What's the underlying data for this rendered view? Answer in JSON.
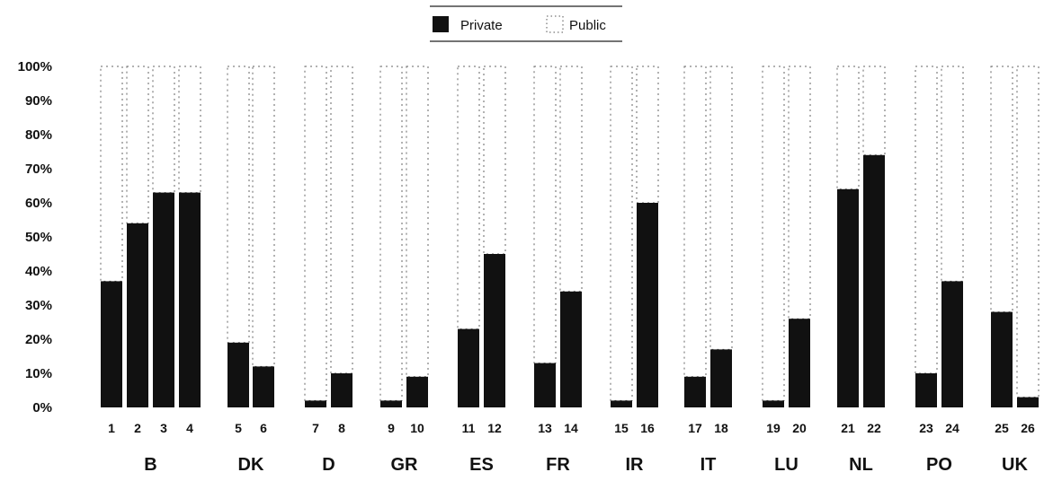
{
  "chart_data": {
    "type": "bar",
    "stacked": true,
    "percent_stacked": true,
    "title": "",
    "xlabel": "",
    "ylabel": "",
    "ylim": [
      0,
      100
    ],
    "y_ticks": [
      "0%",
      "10%",
      "20%",
      "30%",
      "40%",
      "50%",
      "60%",
      "70%",
      "80%",
      "90%",
      "100%"
    ],
    "grid": false,
    "legend_position": "top-center",
    "categories": [
      "1",
      "2",
      "3",
      "4",
      "5",
      "6",
      "7",
      "8",
      "9",
      "10",
      "11",
      "12",
      "13",
      "14",
      "15",
      "16",
      "17",
      "18",
      "19",
      "20",
      "21",
      "22",
      "23",
      "24",
      "25",
      "26"
    ],
    "groups": [
      {
        "label": "B",
        "bars": [
          "1",
          "2",
          "3",
          "4"
        ]
      },
      {
        "label": "DK",
        "bars": [
          "5",
          "6"
        ]
      },
      {
        "label": "D",
        "bars": [
          "7",
          "8"
        ]
      },
      {
        "label": "GR",
        "bars": [
          "9",
          "10"
        ]
      },
      {
        "label": "ES",
        "bars": [
          "11",
          "12"
        ]
      },
      {
        "label": "FR",
        "bars": [
          "13",
          "14"
        ]
      },
      {
        "label": "IR",
        "bars": [
          "15",
          "16"
        ]
      },
      {
        "label": "IT",
        "bars": [
          "17",
          "18"
        ]
      },
      {
        "label": "LU",
        "bars": [
          "19",
          "20"
        ]
      },
      {
        "label": "NL",
        "bars": [
          "21",
          "22"
        ]
      },
      {
        "label": "PO",
        "bars": [
          "23",
          "24"
        ]
      },
      {
        "label": "UK",
        "bars": [
          "25",
          "26"
        ]
      }
    ],
    "series": [
      {
        "name": "Private",
        "color": "#111111",
        "values": [
          37,
          54,
          63,
          63,
          19,
          12,
          2,
          10,
          2,
          9,
          23,
          45,
          13,
          34,
          2,
          60,
          9,
          17,
          2,
          26,
          64,
          74,
          10,
          37,
          28,
          3
        ]
      },
      {
        "name": "Public",
        "color": "#ffffff",
        "values": [
          63,
          46,
          37,
          37,
          81,
          88,
          98,
          90,
          98,
          91,
          77,
          55,
          87,
          66,
          98,
          40,
          91,
          83,
          98,
          74,
          36,
          26,
          90,
          63,
          72,
          97
        ]
      }
    ]
  }
}
